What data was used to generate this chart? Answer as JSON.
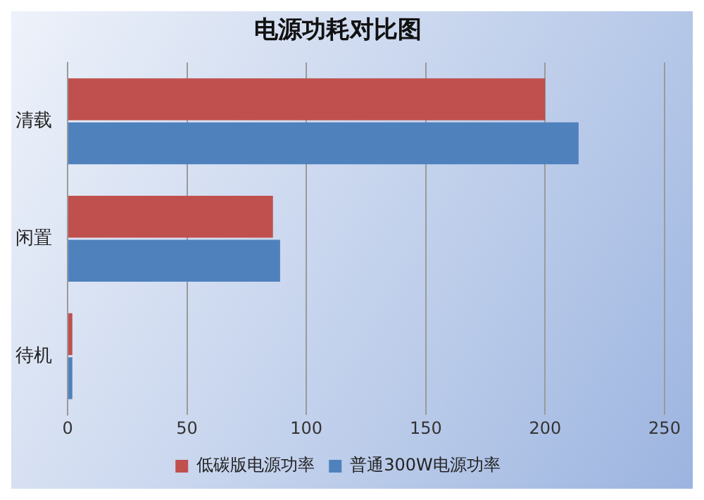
{
  "chart_data": {
    "type": "bar",
    "title": "电源功耗对比图",
    "orientation": "horizontal",
    "categories": [
      "清载",
      "闲置",
      "待机"
    ],
    "series": [
      {
        "name": "低碳版电源功率",
        "color": "#c0504d",
        "values": [
          200,
          86,
          2
        ]
      },
      {
        "name": "普通300W电源功率",
        "color": "#4f81bd",
        "values": [
          214,
          89,
          2
        ]
      }
    ],
    "xlim": [
      0,
      250
    ],
    "xticks": [
      0,
      50,
      100,
      150,
      200,
      250
    ],
    "grid": "x",
    "legend": "bottom"
  }
}
